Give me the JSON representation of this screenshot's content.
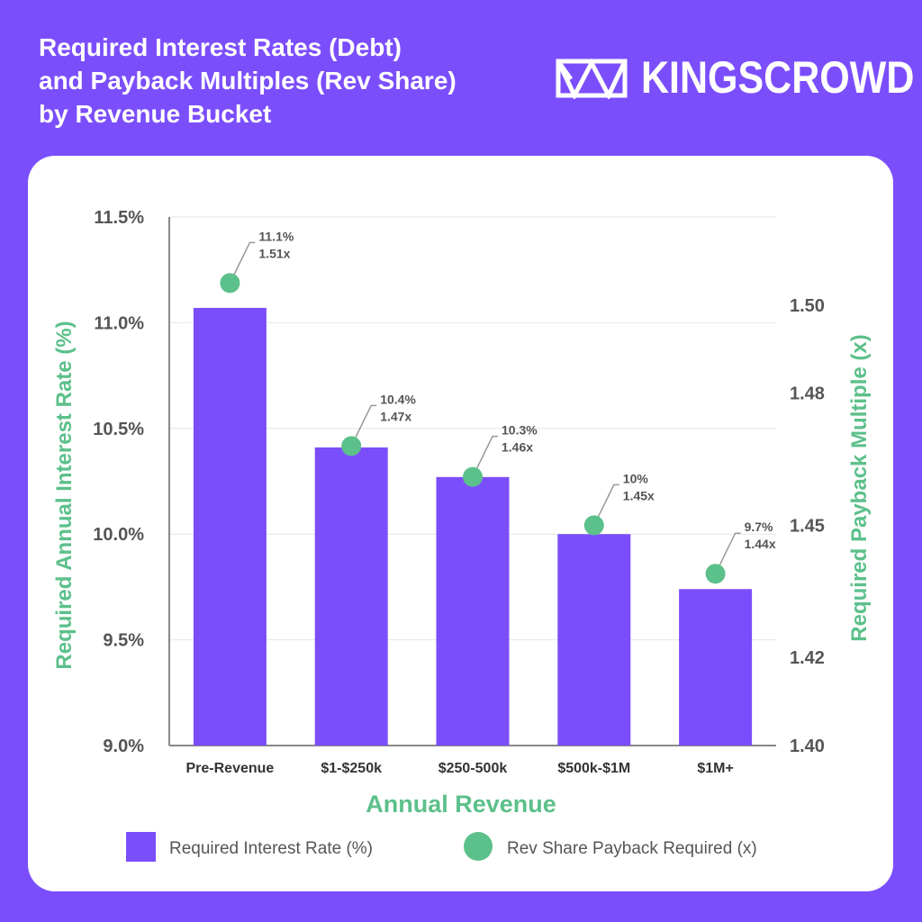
{
  "header": {
    "title_lines": [
      "Required Interest Rates (Debt)",
      "and Payback Multiples (Rev Share)",
      "by Revenue Bucket"
    ],
    "brand_name": "KINGSCROWD",
    "brand_icon": "crown-logo-icon"
  },
  "colors": {
    "background": "#7b4efc",
    "bar": "#7b4efc",
    "point": "#5cc08a",
    "axis_title": "#5cc08a",
    "card": "#ffffff"
  },
  "chart_data": {
    "type": "bar",
    "categories": [
      "Pre-Revenue",
      "$1-$250k",
      "$250-500k",
      "$500k-$1M",
      "$1M+"
    ],
    "series": [
      {
        "name": "Required Interest Rate (%)",
        "type": "bar",
        "axis": "left",
        "values": [
          11.07,
          10.41,
          10.27,
          10.0,
          9.74
        ]
      },
      {
        "name": "Rev Share Payback Required (x)",
        "type": "scatter",
        "axis": "right",
        "values": [
          1.505,
          1.468,
          1.461,
          1.45,
          1.439
        ]
      }
    ],
    "data_labels": [
      [
        "11.1%",
        "1.51x"
      ],
      [
        "10.4%",
        "1.47x"
      ],
      [
        "10.3%",
        "1.46x"
      ],
      [
        "10%",
        "1.45x"
      ],
      [
        "9.7%",
        "1.44x"
      ]
    ],
    "xlabel": "Annual Revenue",
    "ylabel_left": "Required Annual Interest Rate (%)",
    "ylabel_right": "Required Payback Multiple (x)",
    "ylim_left": [
      9.0,
      11.5
    ],
    "ylim_right": [
      1.4,
      1.52
    ],
    "left_ticks": [
      "9.0%",
      "9.5%",
      "10.0%",
      "10.5%",
      "11.0%",
      "11.5%"
    ],
    "left_tick_values": [
      9.0,
      9.5,
      10.0,
      10.5,
      11.0,
      11.5
    ],
    "right_ticks": [
      "1.40",
      "1.42",
      "1.45",
      "1.48",
      "1.50"
    ],
    "right_tick_values": [
      1.4,
      1.42,
      1.45,
      1.48,
      1.5
    ],
    "grid": true,
    "legend_position": "bottom"
  }
}
